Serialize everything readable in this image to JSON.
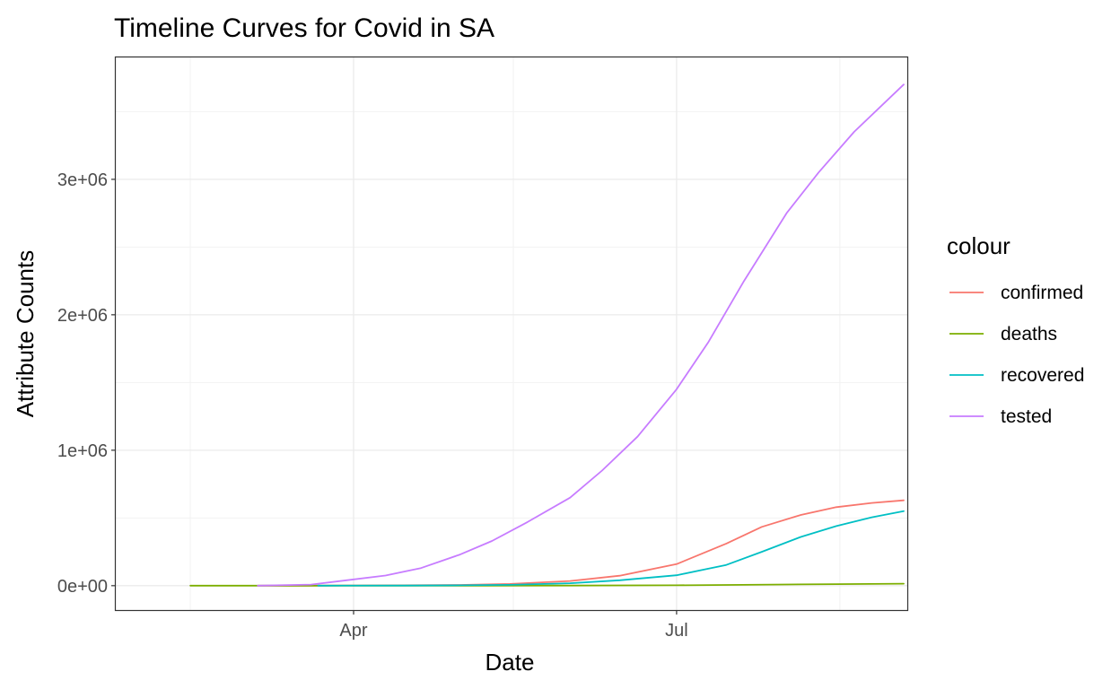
{
  "chart_data": {
    "type": "line",
    "title": "Timeline Curves for Covid in SA",
    "xlabel": "Date",
    "ylabel": "Attribute Counts",
    "x_ticks": [
      "Apr",
      "Jul"
    ],
    "y_ticks": [
      "0e+00",
      "1e+06",
      "2e+06",
      "3e+06"
    ],
    "x_range": [
      "2020-01-25",
      "2020-09-04"
    ],
    "ylim": [
      -180000,
      3900000
    ],
    "grid": true,
    "legend": {
      "title": "colour",
      "position": "right"
    },
    "series": [
      {
        "name": "confirmed",
        "color": "#F8766D",
        "points": [
          [
            "2020-03-05",
            1
          ],
          [
            "2020-03-20",
            240
          ],
          [
            "2020-04-01",
            1380
          ],
          [
            "2020-04-15",
            2500
          ],
          [
            "2020-05-01",
            5600
          ],
          [
            "2020-05-15",
            12700
          ],
          [
            "2020-06-01",
            34400
          ],
          [
            "2020-06-15",
            73500
          ],
          [
            "2020-07-01",
            159300
          ],
          [
            "2020-07-15",
            311000
          ],
          [
            "2020-07-25",
            434000
          ],
          [
            "2020-08-05",
            522000
          ],
          [
            "2020-08-15",
            580000
          ],
          [
            "2020-08-25",
            611000
          ],
          [
            "2020-09-03",
            630000
          ]
        ]
      },
      {
        "name": "deaths",
        "color": "#7CAE00",
        "points": [
          [
            "2020-02-15",
            0
          ],
          [
            "2020-03-27",
            1
          ],
          [
            "2020-04-15",
            48
          ],
          [
            "2020-05-01",
            103
          ],
          [
            "2020-06-01",
            705
          ],
          [
            "2020-07-01",
            2844
          ],
          [
            "2020-08-01",
            8884
          ],
          [
            "2020-08-15",
            11500
          ],
          [
            "2020-09-03",
            14400
          ]
        ]
      },
      {
        "name": "recovered",
        "color": "#00BFC4",
        "points": [
          [
            "2020-03-22",
            0
          ],
          [
            "2020-04-15",
            900
          ],
          [
            "2020-05-01",
            2550
          ],
          [
            "2020-05-15",
            6000
          ],
          [
            "2020-06-01",
            18000
          ],
          [
            "2020-06-15",
            40000
          ],
          [
            "2020-07-01",
            77000
          ],
          [
            "2020-07-15",
            153000
          ],
          [
            "2020-07-25",
            250000
          ],
          [
            "2020-08-05",
            360000
          ],
          [
            "2020-08-15",
            440000
          ],
          [
            "2020-08-25",
            505000
          ],
          [
            "2020-09-03",
            550000
          ]
        ]
      },
      {
        "name": "tested",
        "color": "#C77CFF",
        "points": [
          [
            "2020-03-05",
            0
          ],
          [
            "2020-03-20",
            8000
          ],
          [
            "2020-03-30",
            40000
          ],
          [
            "2020-04-10",
            75000
          ],
          [
            "2020-04-20",
            130000
          ],
          [
            "2020-05-01",
            230000
          ],
          [
            "2020-05-10",
            330000
          ],
          [
            "2020-05-20",
            470000
          ],
          [
            "2020-06-01",
            650000
          ],
          [
            "2020-06-10",
            850000
          ],
          [
            "2020-06-20",
            1100000
          ],
          [
            "2020-07-01",
            1450000
          ],
          [
            "2020-07-10",
            1800000
          ],
          [
            "2020-07-20",
            2250000
          ],
          [
            "2020-08-01",
            2750000
          ],
          [
            "2020-08-10",
            3050000
          ],
          [
            "2020-08-20",
            3350000
          ],
          [
            "2020-09-03",
            3700000
          ]
        ]
      }
    ]
  }
}
